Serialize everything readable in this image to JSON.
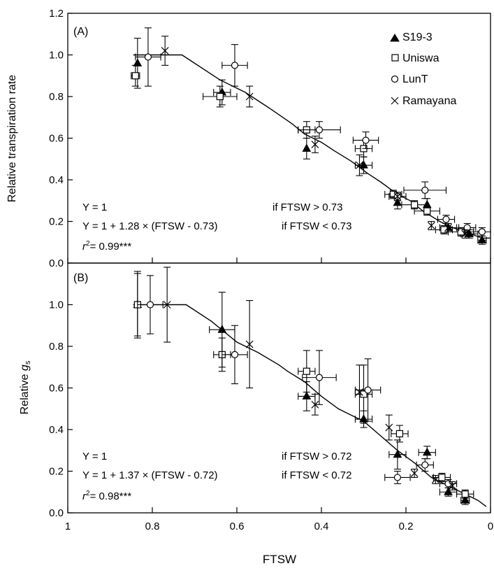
{
  "chart_data": [
    {
      "type": "scatter",
      "panel_label": "(A)",
      "ylabel": "Relative transpiration rate",
      "xlabel": "",
      "xlim": [
        1,
        0
      ],
      "ylim": [
        0,
        1.2
      ],
      "xticks": [
        "1",
        "0.8",
        "0.6",
        "0.4",
        "0.2",
        "0"
      ],
      "yticks": [
        "0.0",
        "0.2",
        "0.4",
        "0.6",
        "0.8",
        "1.0",
        "1.2"
      ],
      "legend": [
        {
          "label": "S19-3",
          "marker": "triangle-filled"
        },
        {
          "label": "Uniswa",
          "marker": "square-open"
        },
        {
          "label": "LunT",
          "marker": "circle-open"
        },
        {
          "label": "Ramayana",
          "marker": "cross"
        }
      ],
      "equations": {
        "eq1": "Y = 1",
        "cond1": "if FTSW > 0.73",
        "eq2": "Y = 1 + 1.28 × (FTSW - 0.73)",
        "cond2": "if FTSW < 0.73",
        "r2_value": "= 0.99***"
      },
      "fit_line": [
        [
          0.73,
          1.0
        ],
        [
          0.64,
          0.88
        ],
        [
          0.58,
          0.82
        ],
        [
          0.52,
          0.74
        ],
        [
          0.47,
          0.67
        ],
        [
          0.44,
          0.62
        ],
        [
          0.4,
          0.58
        ],
        [
          0.37,
          0.54
        ],
        [
          0.33,
          0.49
        ],
        [
          0.29,
          0.43
        ],
        [
          0.26,
          0.39
        ],
        [
          0.22,
          0.33
        ],
        [
          0.19,
          0.3
        ],
        [
          0.16,
          0.25
        ],
        [
          0.12,
          0.2
        ],
        [
          0.09,
          0.17
        ],
        [
          0.06,
          0.15
        ],
        [
          0.02,
          0.12
        ],
        [
          0.0,
          0.12
        ]
      ],
      "series": [
        {
          "name": "S19-3",
          "marker": "triangle-filled",
          "points": [
            [
              0.835,
              0.96,
              0.0,
              0.12
            ],
            [
              0.635,
              0.82,
              0.02,
              0.06
            ],
            [
              0.435,
              0.55,
              0.0,
              0.05
            ],
            [
              0.3,
              0.47,
              0.02,
              0.04
            ],
            [
              0.22,
              0.29,
              0.0,
              0.03
            ],
            [
              0.15,
              0.28,
              0.0,
              0.03
            ],
            [
              0.1,
              0.17,
              0.02,
              0.02
            ],
            [
              0.05,
              0.14,
              0.02,
              0.02
            ],
            [
              0.02,
              0.11,
              0.01,
              0.02
            ]
          ]
        },
        {
          "name": "Uniswa",
          "marker": "square-open",
          "points": [
            [
              0.84,
              0.9,
              0.01,
              0.05
            ],
            [
              0.64,
              0.8,
              0.04,
              0.05
            ],
            [
              0.435,
              0.64,
              0.02,
              0.04
            ],
            [
              0.3,
              0.55,
              0.02,
              0.04
            ],
            [
              0.23,
              0.33,
              0.02,
              0.02
            ],
            [
              0.18,
              0.28,
              0.03,
              0.02
            ],
            [
              0.15,
              0.25,
              0.03,
              0.02
            ],
            [
              0.11,
              0.16,
              0.02,
              0.02
            ],
            [
              0.07,
              0.15,
              0.03,
              0.02
            ]
          ]
        },
        {
          "name": "LunT",
          "marker": "circle-open",
          "points": [
            [
              0.81,
              0.99,
              0.03,
              0.14
            ],
            [
              0.605,
              0.95,
              0.03,
              0.1
            ],
            [
              0.405,
              0.64,
              0.05,
              0.04
            ],
            [
              0.295,
              0.59,
              0.03,
              0.04
            ],
            [
              0.22,
              0.32,
              0.02,
              0.02
            ],
            [
              0.155,
              0.35,
              0.05,
              0.04
            ],
            [
              0.105,
              0.21,
              0.02,
              0.02
            ],
            [
              0.055,
              0.17,
              0.02,
              0.02
            ],
            [
              0.02,
              0.15,
              0.02,
              0.02
            ]
          ]
        },
        {
          "name": "Ramayana",
          "marker": "cross",
          "points": [
            [
              0.77,
              1.02,
              0.0,
              0.07
            ],
            [
              0.57,
              0.8,
              0.0,
              0.05
            ],
            [
              0.415,
              0.57,
              0.0,
              0.04
            ],
            [
              0.31,
              0.47,
              0.0,
              0.05
            ],
            [
              0.22,
              0.32,
              0.0,
              0.02
            ],
            [
              0.14,
              0.18,
              0.0,
              0.02
            ],
            [
              0.1,
              0.17,
              0.0,
              0.02
            ],
            [
              0.06,
              0.14,
              0.0,
              0.02
            ]
          ]
        }
      ]
    },
    {
      "type": "scatter",
      "panel_label": "(B)",
      "ylabel": "Relative",
      "ylabel_symbol": "g",
      "ylabel_sub": "s",
      "xlabel": "FTSW",
      "xlim": [
        1,
        0
      ],
      "ylim": [
        0,
        1.2
      ],
      "xticks": [
        "1",
        "0.8",
        "0.6",
        "0.4",
        "0.2",
        "0"
      ],
      "yticks": [
        "0.0",
        "0.2",
        "0.4",
        "0.6",
        "0.8",
        "1.0"
      ],
      "equations": {
        "eq1": "Y = 1",
        "cond1": "if FTSW > 0.72",
        "eq2": "Y = 1 + 1.37 × (FTSW - 0.72)",
        "cond2": "if FTSW < 0.72",
        "r2_value": "= 0.98***"
      },
      "fit_line": [
        [
          0.72,
          1.0
        ],
        [
          0.66,
          0.92
        ],
        [
          0.6,
          0.82
        ],
        [
          0.55,
          0.77
        ],
        [
          0.5,
          0.71
        ],
        [
          0.48,
          0.68
        ],
        [
          0.44,
          0.63
        ],
        [
          0.4,
          0.56
        ],
        [
          0.36,
          0.5
        ],
        [
          0.33,
          0.47
        ],
        [
          0.3,
          0.44
        ],
        [
          0.26,
          0.37
        ],
        [
          0.22,
          0.3
        ],
        [
          0.18,
          0.24
        ],
        [
          0.14,
          0.17
        ],
        [
          0.1,
          0.13
        ],
        [
          0.06,
          0.09
        ],
        [
          0.03,
          0.06
        ],
        [
          0.01,
          0.03
        ]
      ],
      "series": [
        {
          "name": "S19-3",
          "marker": "triangle-filled",
          "points": [
            [
              0.835,
              1.0,
              0.0,
              0.15
            ],
            [
              0.635,
              0.88,
              0.03,
              0.18
            ],
            [
              0.435,
              0.56,
              0.02,
              0.07
            ],
            [
              0.3,
              0.45,
              0.02,
              0.04
            ],
            [
              0.22,
              0.28,
              0.02,
              0.07
            ],
            [
              0.15,
              0.29,
              0.02,
              0.03
            ],
            [
              0.1,
              0.1,
              0.02,
              0.02
            ],
            [
              0.06,
              0.06,
              0.01,
              0.02
            ]
          ]
        },
        {
          "name": "Uniswa",
          "marker": "square-open",
          "points": [
            [
              0.835,
              1.0,
              0.0,
              0.16
            ],
            [
              0.635,
              0.76,
              0.02,
              0.08
            ],
            [
              0.435,
              0.68,
              0.02,
              0.1
            ],
            [
              0.3,
              0.57,
              0.02,
              0.14
            ],
            [
              0.215,
              0.38,
              0.02,
              0.04
            ],
            [
              0.115,
              0.17,
              0.02,
              0.02
            ],
            [
              0.06,
              0.09,
              0.02,
              0.02
            ]
          ]
        },
        {
          "name": "LunT",
          "marker": "circle-open",
          "points": [
            [
              0.805,
              1.0,
              0.03,
              0.14
            ],
            [
              0.605,
              0.76,
              0.03,
              0.14
            ],
            [
              0.405,
              0.65,
              0.04,
              0.13
            ],
            [
              0.29,
              0.59,
              0.03,
              0.15
            ],
            [
              0.22,
              0.17,
              0.03,
              0.03
            ],
            [
              0.155,
              0.23,
              0.02,
              0.03
            ],
            [
              0.1,
              0.14,
              0.02,
              0.02
            ]
          ]
        },
        {
          "name": "Ramayana",
          "marker": "cross",
          "points": [
            [
              0.765,
              1.0,
              0.0,
              0.18
            ],
            [
              0.57,
              0.81,
              0.0,
              0.21
            ],
            [
              0.415,
              0.52,
              0.0,
              0.05
            ],
            [
              0.31,
              0.58,
              0.0,
              0.13
            ],
            [
              0.24,
              0.41,
              0.0,
              0.06
            ],
            [
              0.18,
              0.19,
              0.0,
              0.02
            ],
            [
              0.13,
              0.16,
              0.0,
              0.02
            ],
            [
              0.09,
              0.13,
              0.0,
              0.02
            ]
          ]
        }
      ]
    }
  ]
}
